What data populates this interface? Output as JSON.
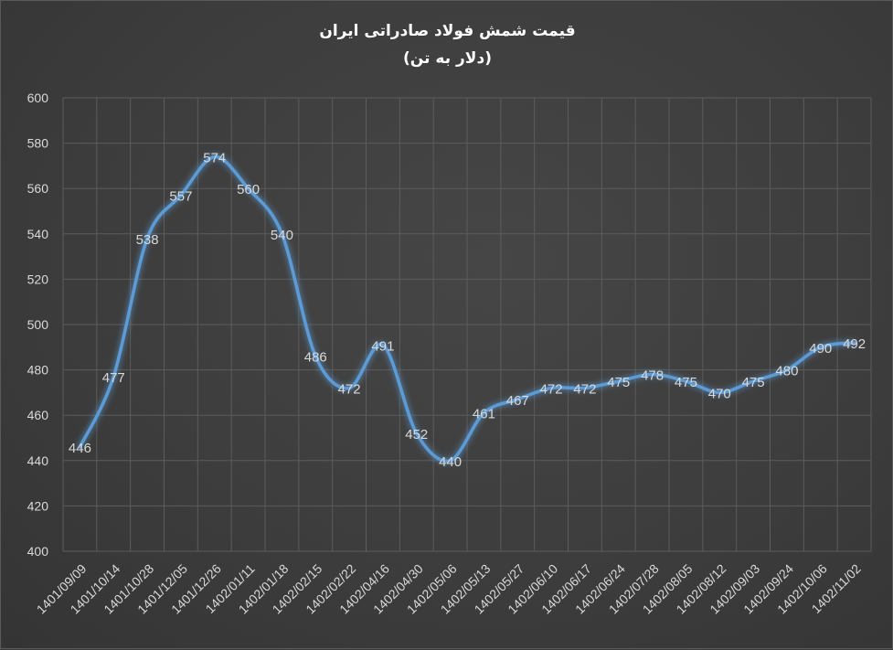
{
  "chart_data": {
    "type": "line",
    "title": "قیمت شمش فولاد صادراتی ایران",
    "subtitle": "(دلار به تن)",
    "xlabel": "",
    "ylabel": "",
    "ylim": [
      400,
      600
    ],
    "y_ticks": [
      400,
      420,
      440,
      460,
      480,
      500,
      520,
      540,
      560,
      580,
      600
    ],
    "categories": [
      "1401/09/09",
      "1401/10/14",
      "1401/10/28",
      "1401/12/05",
      "1401/12/26",
      "1402/01/11",
      "1402/01/18",
      "1402/02/15",
      "1402/02/22",
      "1402/04/16",
      "1402/04/30",
      "1402/05/06",
      "1402/05/13",
      "1402/05/27",
      "1402/06/10",
      "1402/06/17",
      "1402/06/24",
      "1402/07/28",
      "1402/08/05",
      "1402/08/12",
      "1402/09/03",
      "1402/09/24",
      "1402/10/06",
      "1402/11/02"
    ],
    "series": [
      {
        "values": [
          446,
          477,
          538,
          557,
          574,
          560,
          540,
          486,
          472,
          491,
          452,
          440,
          461,
          467,
          472,
          472,
          475,
          478,
          475,
          470,
          475,
          480,
          490,
          492
        ]
      }
    ],
    "grid": true,
    "legend": "none",
    "line_color": "#5b9bd5",
    "background_color": "#404040"
  }
}
